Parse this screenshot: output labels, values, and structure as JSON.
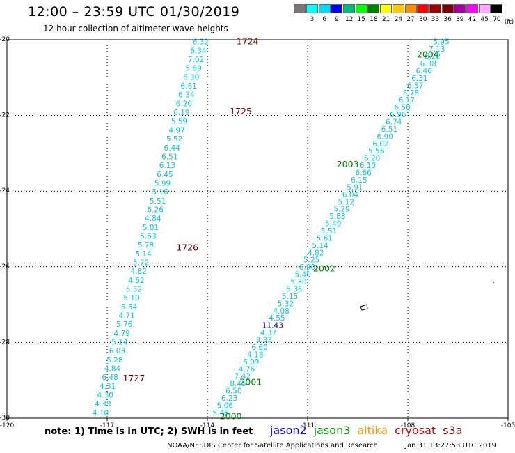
{
  "chart_data": {
    "type": "scatter",
    "title": "12:00 – 23:59 UTC 01/30/2019",
    "subtitle": "12 hour collection of altimeter wave heights",
    "xlim": [
      -120,
      -105
    ],
    "ylim": [
      -30,
      -20
    ],
    "x_ticks": [
      "-120",
      "-117",
      "-114",
      "-111",
      "-108",
      "-105"
    ],
    "y_ticks": [
      "-20",
      "-22",
      "-24",
      "-26",
      "-28",
      "-30"
    ],
    "grid": true,
    "colorbar": {
      "unit": "(ft)",
      "colors": [
        "#777777",
        "#00ffff",
        "#00d9ff",
        "#0000ff",
        "#00bb77",
        "#00ff00",
        "#008000",
        "#ffff00",
        "#ffc800",
        "#ff8c00",
        "#ff0000",
        "#a00000",
        "#7a0000",
        "#a000a0",
        "#ff00ff",
        "#ffaaff",
        "#000000"
      ],
      "labels": [
        "3",
        "6",
        "9",
        "12",
        "15",
        "18",
        "21",
        "24",
        "27",
        "30",
        "33",
        "36",
        "39",
        "42",
        "45",
        "70"
      ]
    },
    "series": [
      {
        "name": "cryosat",
        "color": "#00c8e6",
        "lon_start": -114.2,
        "lat_start": -20.05,
        "lon_end": -117.2,
        "lat_end": -29.85,
        "values": [
          "6.32",
          "6.34",
          "7.02",
          "5.89",
          "6.30",
          "6.61",
          "6.34",
          "6.20",
          "6.19",
          "5.59",
          "4.97",
          "5.52",
          "6.44",
          "6.51",
          "6.13",
          "6.45",
          "5.99",
          "5.16",
          "5.51",
          "6.26",
          "4.84",
          "5.81",
          "5.63",
          "5.78",
          "5.14",
          "5.72",
          "4.82",
          "4.62",
          "5.32",
          "5.10",
          "5.54",
          "4.71",
          "5.76",
          "4.79",
          "5.14",
          "6.03",
          "5.28",
          "4.84",
          "6.48",
          "4.31",
          "4.30",
          "4.39",
          "4.10"
        ],
        "time_labels": [
          {
            "label": "1724",
            "lat": -20.05,
            "lon": -112.8
          },
          {
            "label": "1725",
            "lat": -21.9,
            "lon": -113.0
          },
          {
            "label": "1726",
            "lat": -25.5,
            "lon": -114.6
          },
          {
            "label": "1727",
            "lat": -28.95,
            "lon": -116.2
          }
        ],
        "label_color": "#7a0000"
      },
      {
        "name": "jason3",
        "color": "#00c8e6",
        "lon_start": -107.0,
        "lat_start": -20.05,
        "lon_end": -113.6,
        "lat_end": -29.85,
        "values": [
          "5.95",
          "7.13",
          "6.22",
          "6.38",
          "6.46",
          "6.31",
          "6.57",
          "5.78",
          "6.17",
          "6.58",
          "6.96",
          "6.74",
          "6.51",
          "6.90",
          "6.02",
          "5.56",
          "6.20",
          "6.10",
          "6.66",
          "6.15",
          "5.91",
          "6.04",
          "5.12",
          "5.29",
          "5.83",
          "5.49",
          "5.51",
          "5.61",
          "5.14",
          "4.82",
          "5.25",
          "6.90",
          "5.40",
          "5.30",
          "5.36",
          "5.15",
          "5.32",
          "4.08",
          "4.55",
          "11.43",
          "4.37",
          "3.33",
          "6.60",
          "4.18",
          "5.99",
          "4.76",
          "7.42",
          "8.45",
          "6.50",
          "6.23",
          "5.06",
          "5.48"
        ],
        "highlight": {
          "value": "11.43",
          "color": "#0000c0"
        },
        "time_labels": [
          {
            "label": "2004",
            "lat": -20.4,
            "lon": -107.4
          },
          {
            "label": "2003",
            "lat": -23.3,
            "lon": -109.8
          },
          {
            "label": "2002",
            "lat": -26.05,
            "lon": -110.5
          },
          {
            "label": "2001",
            "lat": -29.05,
            "lon": -112.7
          },
          {
            "label": "2000",
            "lat": -29.95,
            "lon": -113.3
          }
        ],
        "label_color": "#008000"
      }
    ],
    "legend": [
      {
        "name": "jason2",
        "color": "#0000ff"
      },
      {
        "name": "jason3",
        "color": "#009000"
      },
      {
        "name": "altika",
        "color": "#ff9900"
      },
      {
        "name": "cryosat",
        "color": "#cc0000"
      },
      {
        "name": "s3a",
        "color": "#880000"
      }
    ]
  },
  "note": "note:  1) Time is in UTC;  2) SWH is in feet",
  "credit": "NOAA/NESDIS Center for Satellite Applications and Research",
  "timestamp": "Jan 31 13:27:53 UTC 2019"
}
